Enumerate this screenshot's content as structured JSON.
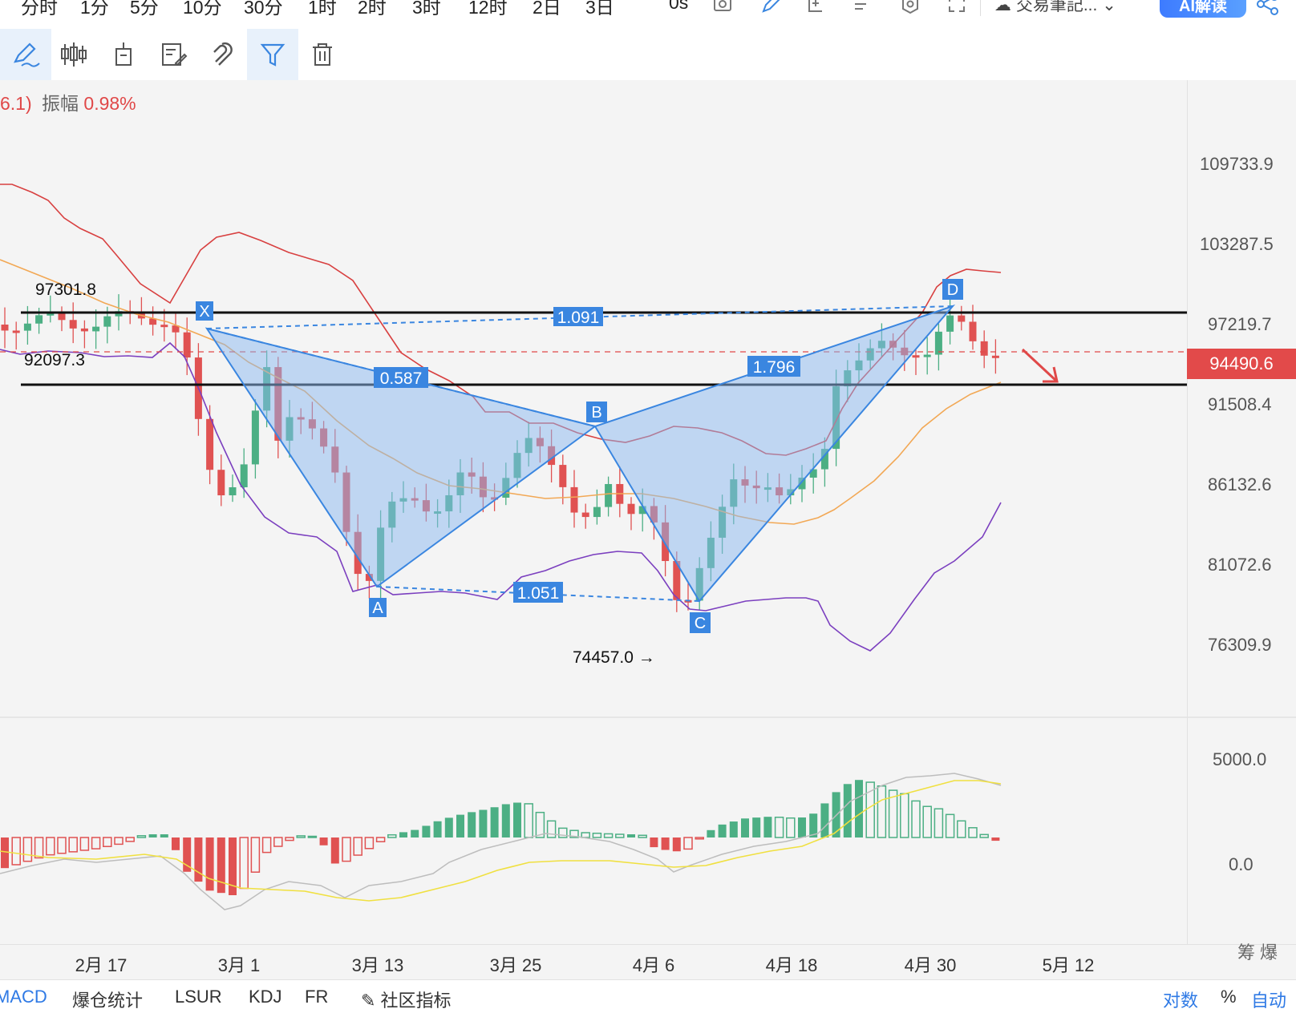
{
  "topbar": {
    "timeframes": [
      "分时",
      "1分",
      "5分",
      "10分",
      "30分",
      "1时",
      "2时",
      "3时",
      "12时",
      "2日",
      "3日"
    ],
    "seconds_label": "0s",
    "journal_label": "交易筆記...",
    "ai_label": "AI解读"
  },
  "info": {
    "prefix": "6.1)",
    "amplitude_label": "振幅",
    "amplitude_value": "0.98%"
  },
  "price_axis": [
    "109733.9",
    "103287.5",
    "97219.7",
    "91508.4",
    "86132.6",
    "81072.6",
    "76309.9"
  ],
  "current_price": "94490.6",
  "macd_axis": [
    "5000.0",
    "0.0"
  ],
  "pattern": {
    "points": [
      "X",
      "A",
      "B",
      "C",
      "D"
    ],
    "ratios": {
      "xb": "0.587",
      "ac": "1.051",
      "bd": "1.796",
      "xd": "1.091"
    }
  },
  "annotations": {
    "high_label": "97301.8",
    "level_label": "92097.3",
    "low_label": "74457.0 →"
  },
  "dates": [
    "2月 17",
    "3月 1",
    "3月 13",
    "3月 25",
    "4月 6",
    "4月 18",
    "4月 30",
    "5月 12"
  ],
  "right_footer": "筹 爆",
  "bottom_tabs": [
    "MACD",
    "爆仓统计",
    "LSUR",
    "KDJ",
    "FR",
    "社区指标"
  ],
  "bottom_right": [
    "对数",
    "%",
    "自动"
  ],
  "colors": {
    "up": "#4caf84",
    "down": "#e05252",
    "pattern": "#3a86e0",
    "accent": "#2f7ae5"
  },
  "chart_data": {
    "type": "candlestick",
    "x": [
      "2月 17",
      "3月 1",
      "3月 13",
      "3月 25",
      "4月 6",
      "4月 18",
      "4月 30",
      "5月 12"
    ],
    "y_ticks": [
      109733.9,
      103287.5,
      97219.7,
      91508.4,
      86132.6,
      81072.6,
      76309.9
    ],
    "current_price": 94490.6,
    "horizontal_levels": [
      97219.7,
      91800
    ],
    "macd_y_ticks": [
      5000.0,
      0.0
    ]
  }
}
